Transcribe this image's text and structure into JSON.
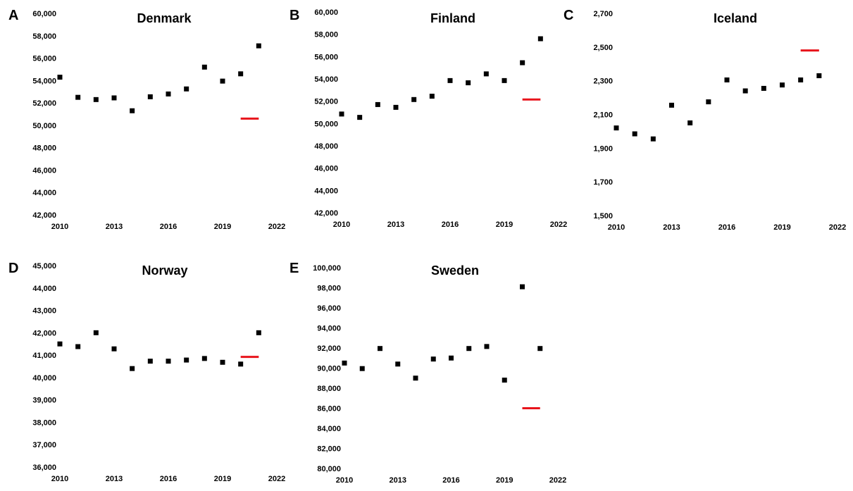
{
  "figure": {
    "colors": {
      "marker": "#000000",
      "reference": "#e8141b"
    }
  },
  "chart_data": [
    {
      "type": "scatter",
      "panel_label": "A",
      "title": "Denmark",
      "x": [
        2010,
        2011,
        2012,
        2013,
        2014,
        2015,
        2016,
        2017,
        2018,
        2019,
        2020,
        2021
      ],
      "y": [
        54300,
        52500,
        52300,
        52450,
        51300,
        52550,
        52800,
        53250,
        55200,
        53950,
        54600,
        57100
      ],
      "reference": {
        "x": [
          2020,
          2021
        ],
        "y": 50600
      },
      "xticks": [
        "2010",
        "2013",
        "2016",
        "2019",
        "2022"
      ],
      "yticks": [
        "42,000",
        "44,000",
        "46,000",
        "48,000",
        "50,000",
        "52,000",
        "54,000",
        "56,000",
        "58,000",
        "60,000"
      ],
      "xlim": [
        2010,
        2022
      ],
      "ylim": [
        42000,
        60000
      ],
      "grid": false
    },
    {
      "type": "scatter",
      "panel_label": "B",
      "title": "Finland",
      "x": [
        2010,
        2011,
        2012,
        2013,
        2014,
        2015,
        2016,
        2017,
        2018,
        2019,
        2020,
        2021
      ],
      "y": [
        50850,
        50550,
        51700,
        51450,
        52150,
        52450,
        53850,
        53650,
        54450,
        53850,
        55450,
        57600
      ],
      "reference": {
        "x": [
          2020,
          2021
        ],
        "y": 52150
      },
      "xticks": [
        "2010",
        "2013",
        "2016",
        "2019",
        "2022"
      ],
      "yticks": [
        "42,000",
        "44,000",
        "46,000",
        "48,000",
        "50,000",
        "52,000",
        "54,000",
        "56,000",
        "58,000",
        "60,000"
      ],
      "xlim": [
        2010,
        2022
      ],
      "ylim": [
        42000,
        60000
      ],
      "grid": false
    },
    {
      "type": "scatter",
      "panel_label": "C",
      "title": "Iceland",
      "x": [
        2010,
        2011,
        2012,
        2013,
        2014,
        2015,
        2016,
        2017,
        2018,
        2019,
        2020,
        2021
      ],
      "y": [
        2020,
        1985,
        1955,
        2155,
        2050,
        2175,
        2305,
        2240,
        2255,
        2275,
        2305,
        2330
      ],
      "reference": {
        "x": [
          2020,
          2021
        ],
        "y": 2480
      },
      "xticks": [
        "2010",
        "2013",
        "2016",
        "2019",
        "2022"
      ],
      "yticks": [
        "1,500",
        "1,700",
        "1,900",
        "2,100",
        "2,300",
        "2,500",
        "2,700"
      ],
      "xlim": [
        2010,
        2022
      ],
      "ylim": [
        1500,
        2700
      ],
      "grid": false
    },
    {
      "type": "scatter",
      "panel_label": "D",
      "title": "Norway",
      "x": [
        2010,
        2011,
        2012,
        2013,
        2014,
        2015,
        2016,
        2017,
        2018,
        2019,
        2020,
        2021
      ],
      "y": [
        41500,
        41380,
        42000,
        41280,
        40400,
        40730,
        40730,
        40780,
        40850,
        40680,
        40600,
        42000
      ],
      "reference": {
        "x": [
          2020,
          2021
        ],
        "y": 40920
      },
      "xticks": [
        "2010",
        "2013",
        "2016",
        "2019",
        "2022"
      ],
      "yticks": [
        "36,000",
        "37,000",
        "38,000",
        "39,000",
        "40,000",
        "41,000",
        "42,000",
        "43,000",
        "44,000",
        "45,000"
      ],
      "xlim": [
        2010,
        2022
      ],
      "ylim": [
        36000,
        45000
      ],
      "grid": false
    },
    {
      "type": "scatter",
      "panel_label": "E",
      "title": "Sweden",
      "x": [
        2010,
        2011,
        2012,
        2013,
        2014,
        2015,
        2016,
        2017,
        2018,
        2019,
        2020,
        2021
      ],
      "y": [
        90500,
        89950,
        91950,
        90400,
        89000,
        90900,
        91000,
        91950,
        92150,
        88800,
        98100,
        91950
      ],
      "reference": {
        "x": [
          2020,
          2021
        ],
        "y": 86000
      },
      "xticks": [
        "2010",
        "2013",
        "2016",
        "2019",
        "2022"
      ],
      "yticks": [
        "80,000",
        "82,000",
        "84,000",
        "86,000",
        "88,000",
        "90,000",
        "92,000",
        "94,000",
        "96,000",
        "98,000",
        "100,000"
      ],
      "xlim": [
        2010,
        2022
      ],
      "ylim": [
        80000,
        100000
      ],
      "grid": false
    }
  ]
}
